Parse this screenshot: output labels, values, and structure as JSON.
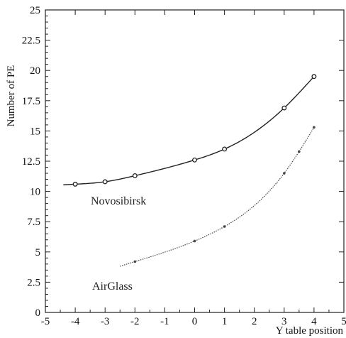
{
  "chart_data": {
    "type": "line",
    "xlabel": "Y table position",
    "ylabel": "Number of PE",
    "xlim": [
      -5,
      5
    ],
    "ylim": [
      0,
      25
    ],
    "x_ticks": [
      "-5",
      "-4",
      "-3",
      "-2",
      "-1",
      "0",
      "1",
      "2",
      "3",
      "4",
      "5"
    ],
    "y_ticks": [
      "0",
      "2.5",
      "5",
      "7.5",
      "10",
      "12.5",
      "15",
      "17.5",
      "20",
      "22.5",
      "25"
    ],
    "grid": false,
    "series": [
      {
        "name": "Novosibirsk",
        "color": "#222222",
        "marker": "open-circle",
        "line_style": "solid",
        "x": [
          -4,
          -3,
          -2,
          0,
          1,
          3,
          4
        ],
        "y": [
          10.6,
          10.8,
          11.3,
          12.6,
          13.5,
          16.9,
          19.5
        ]
      },
      {
        "name": "AirGlass",
        "color": "#444444",
        "marker": "dot",
        "line_style": "dotted",
        "x": [
          -2,
          0,
          1,
          3,
          3.5,
          4
        ],
        "y": [
          4.2,
          5.9,
          7.1,
          11.5,
          13.3,
          15.3
        ]
      }
    ]
  }
}
